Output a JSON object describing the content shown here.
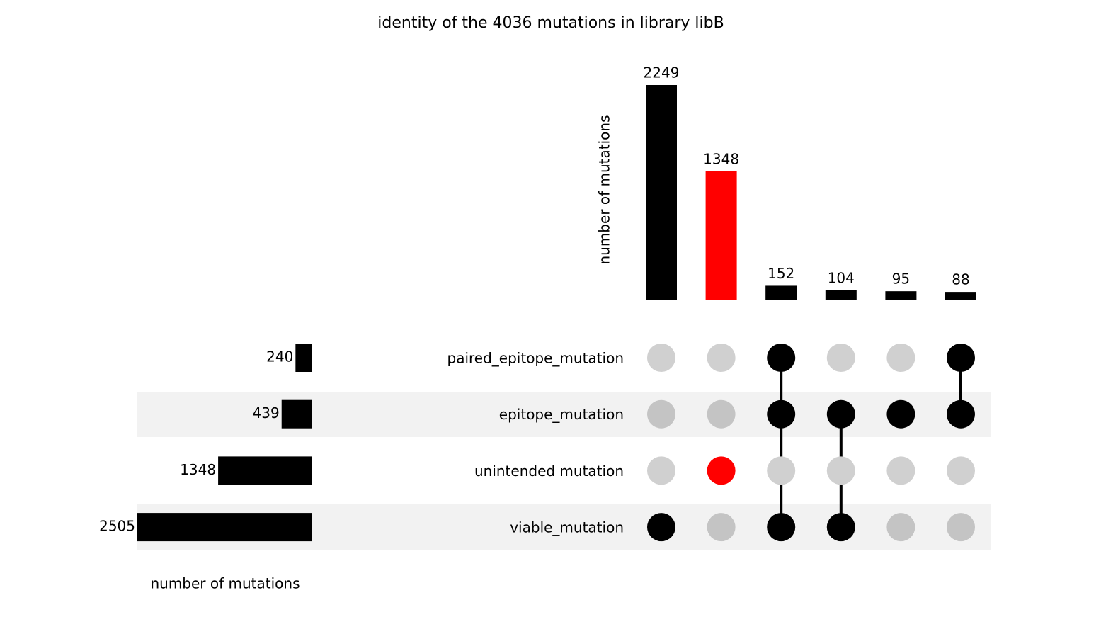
{
  "chart_data": {
    "type": "upset",
    "title": "identity of the 4036 mutations in library libB",
    "y_label": "number of mutations",
    "x_label": "number of mutations",
    "ylim": [
      0,
      2249
    ],
    "xlim": [
      0,
      2505
    ],
    "member_color": "#000000",
    "nonmember_color": "#d0d0d0",
    "sets": [
      {
        "name": "paired_epitope_mutation",
        "size": 240
      },
      {
        "name": "epitope_mutation",
        "size": 439
      },
      {
        "name": "unintended mutation",
        "size": 1348
      },
      {
        "name": "viable_mutation",
        "size": 2505
      }
    ],
    "intersections": [
      {
        "value": 2249,
        "color": "#000000",
        "members": [
          false,
          false,
          false,
          true
        ]
      },
      {
        "value": 1348,
        "color": "#ff0000",
        "members": [
          false,
          false,
          true,
          false
        ]
      },
      {
        "value": 152,
        "color": "#000000",
        "members": [
          true,
          true,
          false,
          true
        ]
      },
      {
        "value": 104,
        "color": "#000000",
        "members": [
          false,
          true,
          false,
          true
        ]
      },
      {
        "value": 95,
        "color": "#000000",
        "members": [
          false,
          true,
          false,
          false
        ]
      },
      {
        "value": 88,
        "color": "#000000",
        "members": [
          true,
          true,
          false,
          false
        ]
      }
    ]
  }
}
